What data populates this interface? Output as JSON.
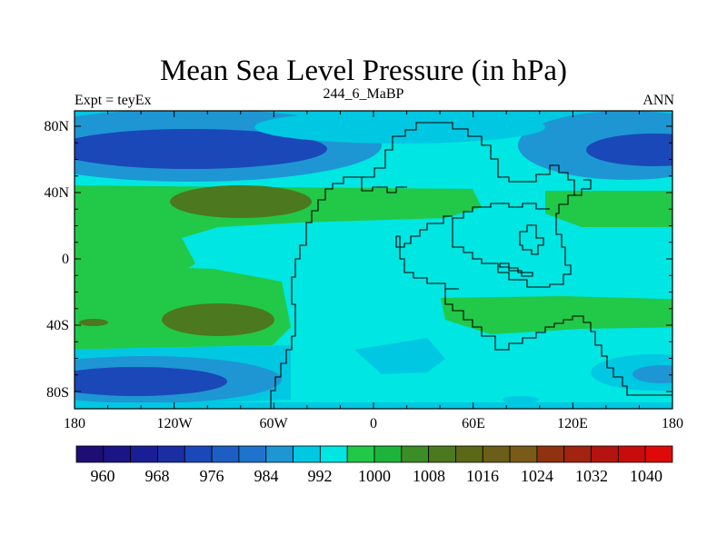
{
  "title": "Mean Sea Level Pressure (in hPa)",
  "subtitle_left": "Expt = teyEx",
  "subtitle_center": "244_6_MaBP",
  "subtitle_right": "ANN",
  "lat_labels": [
    "80N",
    "40N",
    "0",
    "40S",
    "80S"
  ],
  "lon_labels": [
    "180",
    "120W",
    "60W",
    "0",
    "60E",
    "120E",
    "180"
  ],
  "colorbar": {
    "labels": [
      "960",
      "968",
      "976",
      "984",
      "992",
      "1000",
      "1008",
      "1016",
      "1024",
      "1032",
      "1040"
    ],
    "colors": [
      "#1e0e74",
      "#1a1484",
      "#1a1e96",
      "#1a2ea4",
      "#1a48b8",
      "#1c5ec4",
      "#1e74cc",
      "#1e96d4",
      "#00c8e2",
      "#00e6e2",
      "#22c848",
      "#1eb43c",
      "#3c8c28",
      "#4c7820",
      "#5a6818",
      "#6a5e18",
      "#7a5a18",
      "#8e3210",
      "#a02410",
      "#b41410",
      "#c80c0c",
      "#de0a0a"
    ]
  },
  "fill_colors": {
    "background": "#00e6e2",
    "band_light": "#00c8e2",
    "band_mid": "#1e96d4",
    "low_core": "#1a48b8",
    "high_green": "#22c848",
    "high_brown": "#4c7820"
  }
}
